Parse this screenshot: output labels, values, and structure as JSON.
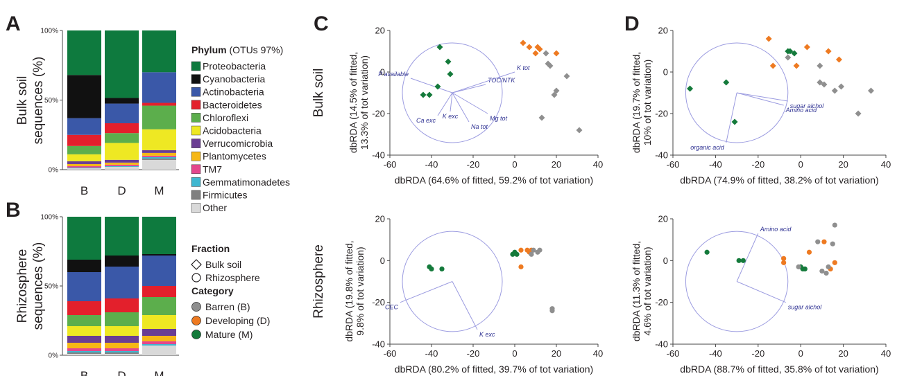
{
  "panels": {
    "a": "A",
    "b": "B",
    "c": "C",
    "d": "D"
  },
  "colors": {
    "Proteobacteria": "#0e7a3e",
    "Cyanobacteria": "#111111",
    "Actinobacteria": "#3a58a8",
    "Bacteroidetes": "#e3202c",
    "Chloroflexi": "#5cae4c",
    "Acidobacteria": "#eee823",
    "Verrucomicrobia": "#6a3d93",
    "Plantomycetes": "#f6b716",
    "TM7": "#e4478d",
    "Gemmatimonadetes": "#3fb7d0",
    "Firmicutes": "#808080",
    "Other": "#d9d9d9",
    "barren": "#8f8f8f",
    "developing": "#ee7a21",
    "mature": "#147a3b",
    "vector": "#9b9be0"
  },
  "legend": {
    "phylum_title": "Phylum",
    "phylum_subtitle": "(OTUs 97%)",
    "phyla": [
      "Proteobacteria",
      "Cyanobacteria",
      "Actinobacteria",
      "Bacteroidetes",
      "Chloroflexi",
      "Acidobacteria",
      "Verrucomicrobia",
      "Plantomycetes",
      "TM7",
      "Gemmatimonadetes",
      "Firmicutes",
      "Other"
    ],
    "fraction_title": "Fraction",
    "fraction_items": [
      {
        "label": "Bulk soil",
        "marker": "diamond"
      },
      {
        "label": "Rhizosphere",
        "marker": "circle"
      }
    ],
    "category_title": "Category",
    "category_items": [
      {
        "label": "Barren (B)",
        "color_key": "barren"
      },
      {
        "label": "Developing (D)",
        "color_key": "developing"
      },
      {
        "label": "Mature (M)",
        "color_key": "mature"
      }
    ]
  },
  "chart_data": [
    {
      "id": "A",
      "type": "bar",
      "stacked": true,
      "percent": true,
      "ylabel": "Bulk soil sequences (%)",
      "categories": [
        "B",
        "D",
        "M"
      ],
      "yticks": [
        "0%",
        "50%",
        "100%"
      ],
      "series": [
        {
          "name": "Other",
          "values": [
            1,
            2,
            7
          ]
        },
        {
          "name": "Firmicutes",
          "values": [
            0,
            0,
            1
          ]
        },
        {
          "name": "Gemmatimonadetes",
          "values": [
            0.5,
            0.5,
            1
          ]
        },
        {
          "name": "TM7",
          "values": [
            1,
            1,
            1
          ]
        },
        {
          "name": "Plantomycetes",
          "values": [
            1.5,
            1.5,
            2
          ]
        },
        {
          "name": "Verrucomicrobia",
          "values": [
            2,
            2,
            2
          ]
        },
        {
          "name": "Acidobacteria",
          "values": [
            5,
            12,
            15
          ]
        },
        {
          "name": "Chloroflexi",
          "values": [
            6,
            7,
            17
          ]
        },
        {
          "name": "Bacteroidetes",
          "values": [
            8,
            7,
            2
          ]
        },
        {
          "name": "Actinobacteria",
          "values": [
            12,
            14,
            22
          ]
        },
        {
          "name": "Cyanobacteria",
          "values": [
            31,
            4,
            0
          ]
        },
        {
          "name": "Proteobacteria",
          "values": [
            32,
            48,
            30
          ]
        }
      ]
    },
    {
      "id": "B",
      "type": "bar",
      "stacked": true,
      "percent": true,
      "ylabel": "Rhizosphere sequences (%)",
      "categories": [
        "B",
        "D",
        "M"
      ],
      "yticks": [
        "0%",
        "50%",
        "100%"
      ],
      "series": [
        {
          "name": "Other",
          "values": [
            1,
            1,
            7
          ]
        },
        {
          "name": "Firmicutes",
          "values": [
            1,
            1,
            0
          ]
        },
        {
          "name": "Gemmatimonadetes",
          "values": [
            1,
            1,
            1
          ]
        },
        {
          "name": "TM7",
          "values": [
            2,
            2,
            2
          ]
        },
        {
          "name": "Plantomycetes",
          "values": [
            4,
            4,
            4
          ]
        },
        {
          "name": "Verrucomicrobia",
          "values": [
            5,
            5,
            5
          ]
        },
        {
          "name": "Acidobacteria",
          "values": [
            7,
            7,
            10
          ]
        },
        {
          "name": "Chloroflexi",
          "values": [
            8,
            10,
            13
          ]
        },
        {
          "name": "Bacteroidetes",
          "values": [
            10,
            10,
            8
          ]
        },
        {
          "name": "Actinobacteria",
          "values": [
            21,
            23,
            22
          ]
        },
        {
          "name": "Cyanobacteria",
          "values": [
            9,
            8,
            1
          ]
        },
        {
          "name": "Proteobacteria",
          "values": [
            31,
            28,
            27
          ]
        }
      ]
    },
    {
      "id": "C-bulk",
      "type": "scatter",
      "row_label": "Bulk soil",
      "marker": "diamond",
      "xlabel": "dbRDA (64.6% of fitted, 59.2% of tot variation)",
      "ylabel": [
        "dbRDA (14.5% of fitted,",
        "13.3% of tot variation)"
      ],
      "xlim": [
        -60,
        40
      ],
      "ylim": [
        -40,
        20
      ],
      "xticks": [
        -60,
        -40,
        -20,
        0,
        20,
        40
      ],
      "yticks": [
        -40,
        -20,
        0,
        20
      ],
      "circle": {
        "cx": -30,
        "cy": -10,
        "r": 24
      },
      "vectors": [
        {
          "label": "P available",
          "x": -50,
          "y": -3
        },
        {
          "label": "TOC/NTK",
          "x": -14,
          "y": -6
        },
        {
          "label": "K tot",
          "x": 0,
          "y": 0
        },
        {
          "label": "Mg tot",
          "x": -13,
          "y": -20
        },
        {
          "label": "Na tot",
          "x": -22,
          "y": -24
        },
        {
          "label": "K exc",
          "x": -31,
          "y": -19
        },
        {
          "label": "Ca exc",
          "x": -37,
          "y": -21
        }
      ],
      "points": [
        {
          "category": "mature",
          "x": -36,
          "y": 12
        },
        {
          "category": "mature",
          "x": -32,
          "y": 5
        },
        {
          "category": "mature",
          "x": -31,
          "y": -1
        },
        {
          "category": "mature",
          "x": -37,
          "y": -7
        },
        {
          "category": "mature",
          "x": -41,
          "y": -11
        },
        {
          "category": "mature",
          "x": -44,
          "y": -11
        },
        {
          "category": "developing",
          "x": 4,
          "y": 14
        },
        {
          "category": "developing",
          "x": 7,
          "y": 12
        },
        {
          "category": "developing",
          "x": 11,
          "y": 12
        },
        {
          "category": "developing",
          "x": 12,
          "y": 11
        },
        {
          "category": "developing",
          "x": 10,
          "y": 9
        },
        {
          "category": "developing",
          "x": 20,
          "y": 9
        },
        {
          "category": "barren",
          "x": 15,
          "y": 9
        },
        {
          "category": "barren",
          "x": 16,
          "y": 4
        },
        {
          "category": "barren",
          "x": 17,
          "y": 3
        },
        {
          "category": "barren",
          "x": 25,
          "y": -2
        },
        {
          "category": "barren",
          "x": 20,
          "y": -9
        },
        {
          "category": "barren",
          "x": 19,
          "y": -11
        },
        {
          "category": "barren",
          "x": 13,
          "y": -22
        },
        {
          "category": "barren",
          "x": 31,
          "y": -28
        }
      ]
    },
    {
      "id": "C-rhizo",
      "type": "scatter",
      "row_label": "Rhizosphere",
      "marker": "circle",
      "xlabel": "dbRDA (80.2% of fitted, 39.7% of tot variation)",
      "ylabel": [
        "dbRDA (19.8% of fitted,",
        "9.8% of tot variation)"
      ],
      "xlim": [
        -60,
        40
      ],
      "ylim": [
        -40,
        20
      ],
      "xticks": [
        -60,
        -40,
        -20,
        0,
        20,
        40
      ],
      "yticks": [
        -40,
        -20,
        0,
        20
      ],
      "circle": {
        "cx": -30,
        "cy": -10,
        "r": 24
      },
      "vectors": [
        {
          "label": "CEC",
          "x": -55,
          "y": -20
        },
        {
          "label": "K exc",
          "x": -18,
          "y": -33
        }
      ],
      "points": [
        {
          "category": "mature",
          "x": -41,
          "y": -3
        },
        {
          "category": "mature",
          "x": -40,
          "y": -4
        },
        {
          "category": "mature",
          "x": -35,
          "y": -4
        },
        {
          "category": "mature",
          "x": -1,
          "y": 3
        },
        {
          "category": "mature",
          "x": 0,
          "y": 4
        },
        {
          "category": "mature",
          "x": 1,
          "y": 3
        },
        {
          "category": "developing",
          "x": 3,
          "y": 5
        },
        {
          "category": "developing",
          "x": 6,
          "y": 5
        },
        {
          "category": "developing",
          "x": 8,
          "y": 5
        },
        {
          "category": "developing",
          "x": 7,
          "y": 4
        },
        {
          "category": "developing",
          "x": 3,
          "y": -3
        },
        {
          "category": "barren",
          "x": 9,
          "y": 5
        },
        {
          "category": "barren",
          "x": 11,
          "y": 4
        },
        {
          "category": "barren",
          "x": 12,
          "y": 5
        },
        {
          "category": "barren",
          "x": 8,
          "y": 3
        },
        {
          "category": "barren",
          "x": 18,
          "y": -23
        },
        {
          "category": "barren",
          "x": 18,
          "y": -24
        }
      ]
    },
    {
      "id": "D-bulk",
      "type": "scatter",
      "row_label": "Bulk soil",
      "marker": "diamond",
      "xlabel": "dbRDA (74.9% of fitted, 38.2% of tot variation)",
      "ylabel": [
        "dbRDA (19.7% of fitted,",
        "10% of tot variation)"
      ],
      "xlim": [
        -60,
        40
      ],
      "ylim": [
        -40,
        20
      ],
      "xticks": [
        -60,
        -40,
        -20,
        0,
        20,
        40
      ],
      "yticks": [
        -40,
        -20,
        0,
        20
      ],
      "circle": {
        "cx": -30,
        "cy": -10,
        "r": 24
      },
      "vectors": [
        {
          "label": "sugar alchol",
          "x": -6,
          "y": -14
        },
        {
          "label": "Amino acid",
          "x": -8,
          "y": -16
        },
        {
          "label": "organic acid",
          "x": -35,
          "y": -34
        }
      ],
      "points": [
        {
          "category": "mature",
          "x": -52,
          "y": -8
        },
        {
          "category": "mature",
          "x": -35,
          "y": -5
        },
        {
          "category": "mature",
          "x": -31,
          "y": -24
        },
        {
          "category": "mature",
          "x": -6,
          "y": 10
        },
        {
          "category": "mature",
          "x": -5,
          "y": 10
        },
        {
          "category": "mature",
          "x": -3,
          "y": 9
        },
        {
          "category": "developing",
          "x": -15,
          "y": 16
        },
        {
          "category": "developing",
          "x": -13,
          "y": 3
        },
        {
          "category": "developing",
          "x": -2,
          "y": 3
        },
        {
          "category": "developing",
          "x": 3,
          "y": 12
        },
        {
          "category": "developing",
          "x": 13,
          "y": 10
        },
        {
          "category": "developing",
          "x": 18,
          "y": 6
        },
        {
          "category": "barren",
          "x": -6,
          "y": 7
        },
        {
          "category": "barren",
          "x": 9,
          "y": 3
        },
        {
          "category": "barren",
          "x": 9,
          "y": -5
        },
        {
          "category": "barren",
          "x": 11,
          "y": -6
        },
        {
          "category": "barren",
          "x": 16,
          "y": -9
        },
        {
          "category": "barren",
          "x": 19,
          "y": -7
        },
        {
          "category": "barren",
          "x": 27,
          "y": -20
        },
        {
          "category": "barren",
          "x": 33,
          "y": -9
        }
      ]
    },
    {
      "id": "D-rhizo",
      "type": "scatter",
      "row_label": "Rhizosphere",
      "marker": "circle",
      "xlabel": "dbRDA (88.7% of fitted, 35.8% of tot variation)",
      "ylabel": [
        "dbRDA (11.3% of fitted,",
        "4.6% of tot variation)"
      ],
      "xlim": [
        -60,
        40
      ],
      "ylim": [
        -40,
        20
      ],
      "xticks": [
        -60,
        -40,
        -20,
        0,
        20,
        40
      ],
      "yticks": [
        -40,
        -20,
        0,
        20
      ],
      "circle": {
        "cx": -30,
        "cy": -10,
        "r": 24
      },
      "vectors": [
        {
          "label": "Amino acid",
          "x": -20,
          "y": 13
        },
        {
          "label": "sugar alchol",
          "x": -7,
          "y": -20
        }
      ],
      "points": [
        {
          "category": "mature",
          "x": -44,
          "y": 4
        },
        {
          "category": "mature",
          "x": -29,
          "y": 0
        },
        {
          "category": "mature",
          "x": -27,
          "y": 0
        },
        {
          "category": "mature",
          "x": 0,
          "y": -3
        },
        {
          "category": "mature",
          "x": 1,
          "y": -4
        },
        {
          "category": "mature",
          "x": 2,
          "y": -4
        },
        {
          "category": "developing",
          "x": -8,
          "y": 1
        },
        {
          "category": "developing",
          "x": -8,
          "y": -1
        },
        {
          "category": "developing",
          "x": 4,
          "y": 4
        },
        {
          "category": "developing",
          "x": 11,
          "y": 9
        },
        {
          "category": "developing",
          "x": 14,
          "y": -4
        },
        {
          "category": "developing",
          "x": 16,
          "y": -1
        },
        {
          "category": "barren",
          "x": -1,
          "y": -3
        },
        {
          "category": "barren",
          "x": 8,
          "y": 9
        },
        {
          "category": "barren",
          "x": 10,
          "y": -5
        },
        {
          "category": "barren",
          "x": 12,
          "y": -6
        },
        {
          "category": "barren",
          "x": 13,
          "y": -3
        },
        {
          "category": "barren",
          "x": 15,
          "y": 8
        },
        {
          "category": "barren",
          "x": 16,
          "y": 17
        }
      ]
    }
  ]
}
